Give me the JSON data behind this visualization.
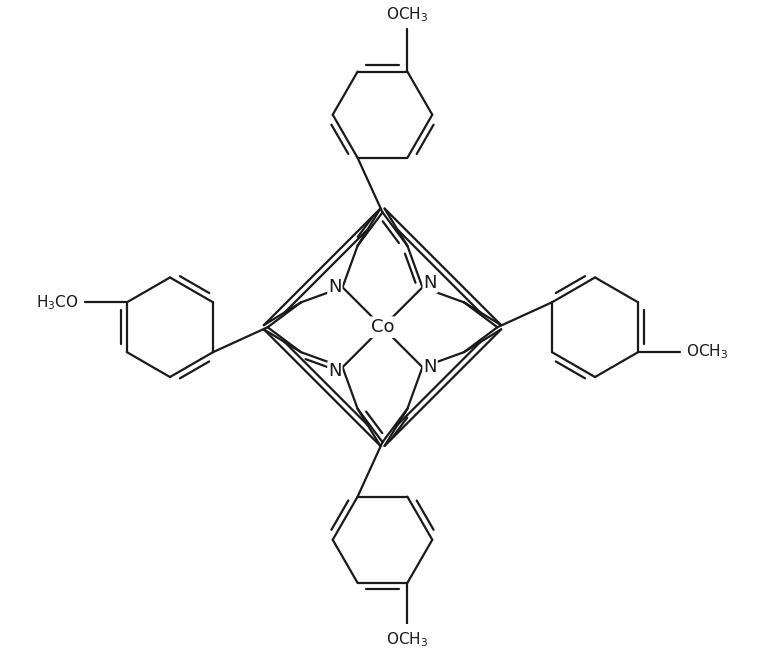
{
  "line_color": "#1a1a1a",
  "line_width": 1.6,
  "background_color": "#ffffff",
  "co_label": "Co",
  "n_label": "N",
  "font_size_n": 13,
  "font_size_co": 13,
  "font_size_group": 11
}
